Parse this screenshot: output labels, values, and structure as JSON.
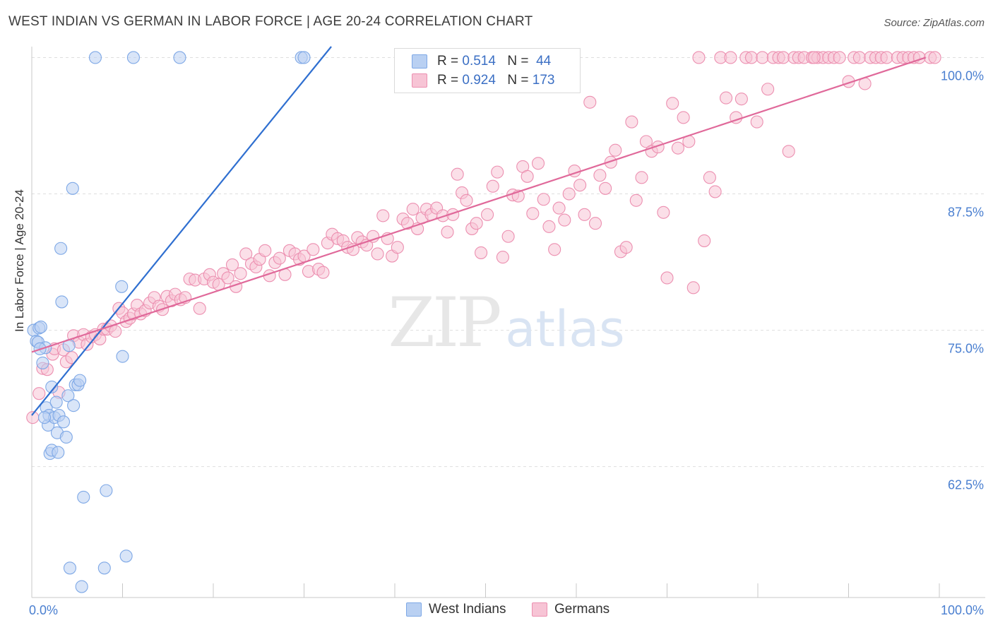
{
  "title": "WEST INDIAN VS GERMAN IN LABOR FORCE | AGE 20-24 CORRELATION CHART",
  "source": "Source: ZipAtlas.com",
  "watermark": {
    "zip": "ZIP",
    "atlas": "atlas"
  },
  "legend": {
    "rows": [
      {
        "r_label": "R =",
        "r_value": "0.514",
        "n_label": "N =",
        "n_value": "44"
      },
      {
        "r_label": "R =",
        "r_value": "0.924",
        "n_label": "N =",
        "n_value": "173"
      }
    ]
  },
  "chart_data": {
    "type": "scatter",
    "title": "WEST INDIAN VS GERMAN IN LABOR FORCE | AGE 20-24 CORRELATION CHART",
    "xlabel": "",
    "ylabel": "In Labor Force | Age 20-24",
    "xlim": [
      0,
      100
    ],
    "ylim": [
      50.5,
      101
    ],
    "x_tick_labels": [
      "0.0%",
      "100.0%"
    ],
    "y_ticks": [
      62.5,
      75.0,
      87.5,
      100.0
    ],
    "y_tick_labels": [
      "62.5%",
      "75.0%",
      "87.5%",
      "100.0%"
    ],
    "grid": true,
    "series": [
      {
        "name": "West Indians",
        "color": "#7ea8e6",
        "fill": "#b9d0f2",
        "line_color": "#2f6fd0",
        "trend": {
          "x": [
            0,
            33
          ],
          "y": [
            67.2,
            101
          ]
        },
        "points": [
          [
            0.2,
            75.0
          ],
          [
            0.5,
            74.0
          ],
          [
            0.7,
            73.9
          ],
          [
            0.8,
            75.2
          ],
          [
            1.0,
            75.3
          ],
          [
            1.2,
            72.0
          ],
          [
            1.5,
            73.4
          ],
          [
            1.6,
            67.9
          ],
          [
            1.8,
            66.3
          ],
          [
            1.9,
            67.2
          ],
          [
            2.2,
            69.8
          ],
          [
            2.0,
            63.7
          ],
          [
            2.2,
            64.0
          ],
          [
            2.5,
            67.0
          ],
          [
            2.7,
            68.4
          ],
          [
            2.8,
            65.6
          ],
          [
            3.0,
            67.2
          ],
          [
            3.2,
            82.5
          ],
          [
            3.3,
            77.6
          ],
          [
            3.5,
            66.6
          ],
          [
            3.8,
            65.2
          ],
          [
            4.0,
            69.0
          ],
          [
            4.1,
            73.6
          ],
          [
            4.2,
            53.2
          ],
          [
            4.5,
            88.0
          ],
          [
            4.6,
            68.1
          ],
          [
            4.8,
            70.0
          ],
          [
            5.1,
            70.0
          ],
          [
            5.3,
            70.4
          ],
          [
            5.5,
            51.5
          ],
          [
            5.7,
            59.7
          ],
          [
            7.0,
            100.0
          ],
          [
            8.0,
            53.2
          ],
          [
            8.2,
            60.3
          ],
          [
            9.9,
            79.0
          ],
          [
            10.0,
            72.6
          ],
          [
            10.4,
            54.3
          ],
          [
            11.2,
            100.0
          ],
          [
            16.3,
            100.0
          ],
          [
            29.7,
            100.0
          ],
          [
            30.0,
            100.0
          ],
          [
            0.9,
            73.3
          ],
          [
            1.4,
            67.0
          ],
          [
            2.9,
            63.8
          ]
        ]
      },
      {
        "name": "Germans",
        "color": "#ec8fb0",
        "fill": "#f7c4d5",
        "line_color": "#e0699a",
        "trend": {
          "x": [
            0,
            98.5
          ],
          "y": [
            73.0,
            100.0
          ]
        },
        "points": [
          [
            0.1,
            67.0
          ],
          [
            0.8,
            69.2
          ],
          [
            1.2,
            71.5
          ],
          [
            1.7,
            71.4
          ],
          [
            2.3,
            72.8
          ],
          [
            2.5,
            73.3
          ],
          [
            3.0,
            69.3
          ],
          [
            3.5,
            73.2
          ],
          [
            3.8,
            72.1
          ],
          [
            4.4,
            72.5
          ],
          [
            4.6,
            74.5
          ],
          [
            5.2,
            73.9
          ],
          [
            5.7,
            74.6
          ],
          [
            6.1,
            73.7
          ],
          [
            6.6,
            74.4
          ],
          [
            7.0,
            74.6
          ],
          [
            7.5,
            74.2
          ],
          [
            7.9,
            75.1
          ],
          [
            8.3,
            75.1
          ],
          [
            8.7,
            75.4
          ],
          [
            9.2,
            74.9
          ],
          [
            9.6,
            77.0
          ],
          [
            10.0,
            76.6
          ],
          [
            10.4,
            75.8
          ],
          [
            10.8,
            76.1
          ],
          [
            11.2,
            76.5
          ],
          [
            11.6,
            77.3
          ],
          [
            12.0,
            76.5
          ],
          [
            12.5,
            76.8
          ],
          [
            13.0,
            77.5
          ],
          [
            13.5,
            78.0
          ],
          [
            14.0,
            77.2
          ],
          [
            14.4,
            76.9
          ],
          [
            14.9,
            78.1
          ],
          [
            15.4,
            77.7
          ],
          [
            15.8,
            78.3
          ],
          [
            16.4,
            77.8
          ],
          [
            16.9,
            78.0
          ],
          [
            17.4,
            79.7
          ],
          [
            18.0,
            79.6
          ],
          [
            18.5,
            77.0
          ],
          [
            19.0,
            79.7
          ],
          [
            19.6,
            80.1
          ],
          [
            20.0,
            79.4
          ],
          [
            20.6,
            79.2
          ],
          [
            21.1,
            80.2
          ],
          [
            21.6,
            79.8
          ],
          [
            22.1,
            81.0
          ],
          [
            22.5,
            79.0
          ],
          [
            23.0,
            80.2
          ],
          [
            23.6,
            82.0
          ],
          [
            24.2,
            81.1
          ],
          [
            24.7,
            80.8
          ],
          [
            25.1,
            81.5
          ],
          [
            25.7,
            82.3
          ],
          [
            26.2,
            80.0
          ],
          [
            26.8,
            81.2
          ],
          [
            27.3,
            81.6
          ],
          [
            27.9,
            80.1
          ],
          [
            28.4,
            82.3
          ],
          [
            29.0,
            82.0
          ],
          [
            29.5,
            81.5
          ],
          [
            30.0,
            81.8
          ],
          [
            30.5,
            80.4
          ],
          [
            31.0,
            82.4
          ],
          [
            31.6,
            80.6
          ],
          [
            32.1,
            80.3
          ],
          [
            32.6,
            83.0
          ],
          [
            33.1,
            83.8
          ],
          [
            33.7,
            83.4
          ],
          [
            34.3,
            83.2
          ],
          [
            34.8,
            82.6
          ],
          [
            35.4,
            82.4
          ],
          [
            35.9,
            83.5
          ],
          [
            36.4,
            83.1
          ],
          [
            36.9,
            82.8
          ],
          [
            37.6,
            83.6
          ],
          [
            38.1,
            82.0
          ],
          [
            38.7,
            85.5
          ],
          [
            39.2,
            83.4
          ],
          [
            39.7,
            81.8
          ],
          [
            40.3,
            82.6
          ],
          [
            40.9,
            85.2
          ],
          [
            41.4,
            84.8
          ],
          [
            42.0,
            86.1
          ],
          [
            42.5,
            84.3
          ],
          [
            43.0,
            85.3
          ],
          [
            43.5,
            86.1
          ],
          [
            44.0,
            85.6
          ],
          [
            44.6,
            86.2
          ],
          [
            45.3,
            85.5
          ],
          [
            45.8,
            84.0
          ],
          [
            46.4,
            85.6
          ],
          [
            46.9,
            89.3
          ],
          [
            47.4,
            87.6
          ],
          [
            47.9,
            86.9
          ],
          [
            48.5,
            84.3
          ],
          [
            49.0,
            84.8
          ],
          [
            49.5,
            82.1
          ],
          [
            50.2,
            85.6
          ],
          [
            50.8,
            88.2
          ],
          [
            51.3,
            89.5
          ],
          [
            51.9,
            81.7
          ],
          [
            52.5,
            83.6
          ],
          [
            53.0,
            87.4
          ],
          [
            53.6,
            87.3
          ],
          [
            54.1,
            90.0
          ],
          [
            54.6,
            89.1
          ],
          [
            55.2,
            85.7
          ],
          [
            55.8,
            90.3
          ],
          [
            56.4,
            87.0
          ],
          [
            57.0,
            84.5
          ],
          [
            57.6,
            82.4
          ],
          [
            58.1,
            86.2
          ],
          [
            58.7,
            85.1
          ],
          [
            59.2,
            87.5
          ],
          [
            59.8,
            89.6
          ],
          [
            60.4,
            88.3
          ],
          [
            60.9,
            85.6
          ],
          [
            61.5,
            95.9
          ],
          [
            62.1,
            84.8
          ],
          [
            62.6,
            89.2
          ],
          [
            63.2,
            88.0
          ],
          [
            63.8,
            90.4
          ],
          [
            64.3,
            91.5
          ],
          [
            64.9,
            82.2
          ],
          [
            65.5,
            82.6
          ],
          [
            66.1,
            94.1
          ],
          [
            66.6,
            86.9
          ],
          [
            67.2,
            89.0
          ],
          [
            67.7,
            92.3
          ],
          [
            68.3,
            91.4
          ],
          [
            69.0,
            91.8
          ],
          [
            69.6,
            85.8
          ],
          [
            70.0,
            79.8
          ],
          [
            70.6,
            95.8
          ],
          [
            71.2,
            91.7
          ],
          [
            71.8,
            94.5
          ],
          [
            72.4,
            92.3
          ],
          [
            72.9,
            78.9
          ],
          [
            73.5,
            100.0
          ],
          [
            74.1,
            83.2
          ],
          [
            74.7,
            89.0
          ],
          [
            75.3,
            87.7
          ],
          [
            75.9,
            100.0
          ],
          [
            76.5,
            96.3
          ],
          [
            77.0,
            100.0
          ],
          [
            77.6,
            94.5
          ],
          [
            78.2,
            96.2
          ],
          [
            78.7,
            100.0
          ],
          [
            79.3,
            100.0
          ],
          [
            79.9,
            94.1
          ],
          [
            80.5,
            100.0
          ],
          [
            81.1,
            97.1
          ],
          [
            81.7,
            100.0
          ],
          [
            82.3,
            100.0
          ],
          [
            82.8,
            100.0
          ],
          [
            83.4,
            91.4
          ],
          [
            84.0,
            100.0
          ],
          [
            84.5,
            100.0
          ],
          [
            85.1,
            100.0
          ],
          [
            86.0,
            100.0
          ],
          [
            86.6,
            100.0
          ],
          [
            87.2,
            100.0
          ],
          [
            87.8,
            100.0
          ],
          [
            88.4,
            100.0
          ],
          [
            89.0,
            100.0
          ],
          [
            90.0,
            97.8
          ],
          [
            90.6,
            100.0
          ],
          [
            91.2,
            100.0
          ],
          [
            91.8,
            97.6
          ],
          [
            92.4,
            100.0
          ],
          [
            93.0,
            100.0
          ],
          [
            93.6,
            100.0
          ],
          [
            94.2,
            100.0
          ],
          [
            95.4,
            100.0
          ],
          [
            96.0,
            100.0
          ],
          [
            96.6,
            100.0
          ],
          [
            97.2,
            100.0
          ],
          [
            97.8,
            100.0
          ],
          [
            99.0,
            100.0
          ],
          [
            99.5,
            100.0
          ],
          [
            86.2,
            100.0
          ]
        ]
      }
    ],
    "legend_labels": [
      "West Indians",
      "Germans"
    ]
  }
}
